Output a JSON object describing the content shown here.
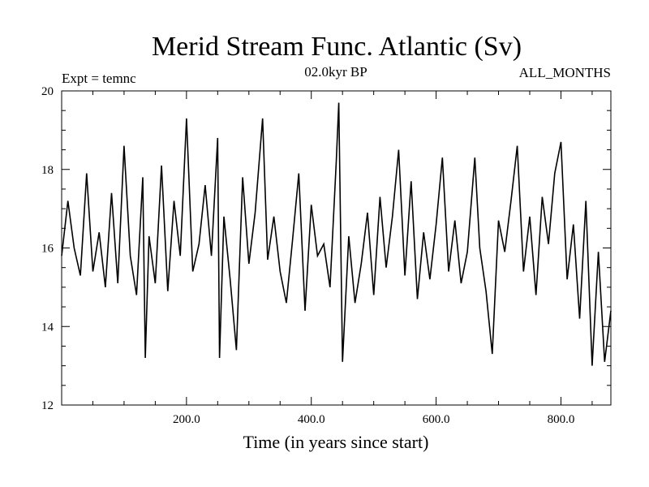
{
  "chart_data": {
    "type": "line",
    "title": "Merid Stream Func. Atlantic (Sv)",
    "subtitle": "02.0kyr BP",
    "left_annotation": "Expt = temnc",
    "right_annotation": "ALL_MONTHS",
    "xlabel": "Time (in years since start)",
    "ylabel": "",
    "xlim": [
      0,
      880
    ],
    "ylim": [
      12,
      20
    ],
    "x_ticks": [
      200,
      400,
      600,
      800
    ],
    "x_tick_labels": [
      "200.0",
      "400.0",
      "600.0",
      "800.0"
    ],
    "y_ticks": [
      12,
      14,
      16,
      18,
      20
    ],
    "y_tick_labels": [
      "12",
      "14",
      "16",
      "18",
      "20"
    ],
    "grid": false,
    "legend": "none",
    "line_color": "#000000",
    "series": [
      {
        "x": [
          0,
          10,
          20,
          30,
          40,
          50,
          60,
          70,
          80,
          90,
          100,
          110,
          120,
          130,
          134,
          140,
          150,
          160,
          170,
          180,
          190,
          200,
          210,
          220,
          230,
          240,
          250,
          253,
          260,
          270,
          280,
          290,
          300,
          310,
          322,
          330,
          340,
          350,
          360,
          370,
          380,
          390,
          400,
          410,
          420,
          430,
          440,
          444,
          450,
          460,
          470,
          480,
          490,
          500,
          510,
          520,
          530,
          540,
          550,
          560,
          570,
          580,
          590,
          600,
          610,
          620,
          630,
          640,
          650,
          662,
          670,
          680,
          690,
          700,
          710,
          720,
          730,
          740,
          750,
          760,
          770,
          780,
          790,
          800,
          810,
          820,
          830,
          840,
          850,
          860,
          870,
          880
        ],
        "values": [
          15.8,
          17.2,
          16.0,
          15.3,
          17.9,
          15.4,
          16.4,
          15.0,
          17.4,
          15.1,
          18.6,
          15.8,
          14.8,
          17.8,
          13.2,
          16.3,
          15.1,
          18.1,
          14.9,
          17.2,
          15.8,
          19.3,
          15.4,
          16.1,
          17.6,
          15.8,
          18.8,
          13.2,
          16.8,
          15.2,
          13.4,
          17.8,
          15.6,
          16.9,
          19.3,
          15.7,
          16.8,
          15.4,
          14.6,
          16.2,
          17.9,
          14.4,
          17.1,
          15.8,
          16.1,
          15.0,
          18.2,
          19.7,
          13.1,
          16.3,
          14.6,
          15.6,
          16.9,
          14.8,
          17.3,
          15.5,
          16.8,
          18.5,
          15.3,
          17.7,
          14.7,
          16.4,
          15.2,
          16.6,
          18.3,
          15.4,
          16.7,
          15.1,
          15.9,
          18.3,
          16.0,
          14.9,
          13.3,
          16.7,
          15.9,
          17.2,
          18.6,
          15.4,
          16.8,
          14.8,
          17.3,
          16.1,
          17.9,
          18.7,
          15.2,
          16.6,
          14.2,
          17.2,
          13.0,
          15.9,
          13.1,
          14.4
        ]
      }
    ]
  }
}
